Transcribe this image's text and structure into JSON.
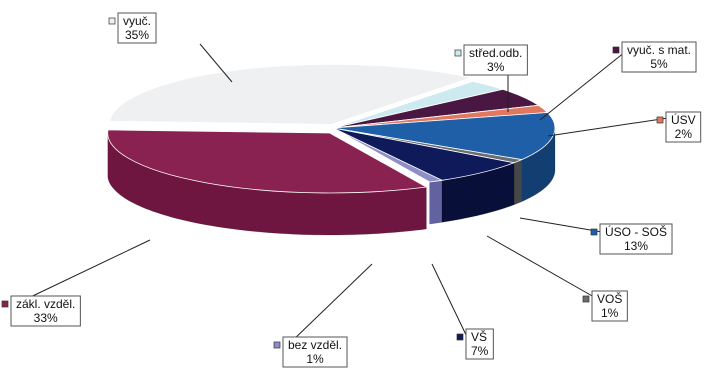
{
  "chart_data": {
    "type": "pie",
    "style": "3d-exploded-disc",
    "title": "",
    "legend": "none",
    "slices": [
      {
        "label": "vyuč.",
        "value": 35,
        "display": "35%",
        "color": "#eef0f1",
        "side": "#c9cccd"
      },
      {
        "label": "střed.odb.",
        "value": 3,
        "display": "3%",
        "color": "#cdeaf0",
        "side": "#9fc4cb"
      },
      {
        "label": "vyuč. s mat.",
        "value": 5,
        "display": "5%",
        "color": "#4a1742",
        "side": "#2d0c28"
      },
      {
        "label": "ÚSV",
        "value": 2,
        "display": "2%",
        "color": "#e07860",
        "side": "#a85240"
      },
      {
        "label": "ÚSO - SOŠ",
        "value": 13,
        "display": "13%",
        "color": "#1f5fa8",
        "side": "#123e72"
      },
      {
        "label": "VOŠ",
        "value": 1,
        "display": "1%",
        "color": "#6a6d72",
        "side": "#45474b"
      },
      {
        "label": "VŠ",
        "value": 7,
        "display": "7%",
        "color": "#0f1a5a",
        "side": "#080f38"
      },
      {
        "label": "bez vzděl.",
        "value": 1,
        "display": "1%",
        "color": "#8f8fc8",
        "side": "#6262a0"
      },
      {
        "label": "zákl. vzděl.",
        "value": 33,
        "display": "33%",
        "color": "#8a2251",
        "side": "#6e163f"
      }
    ]
  }
}
